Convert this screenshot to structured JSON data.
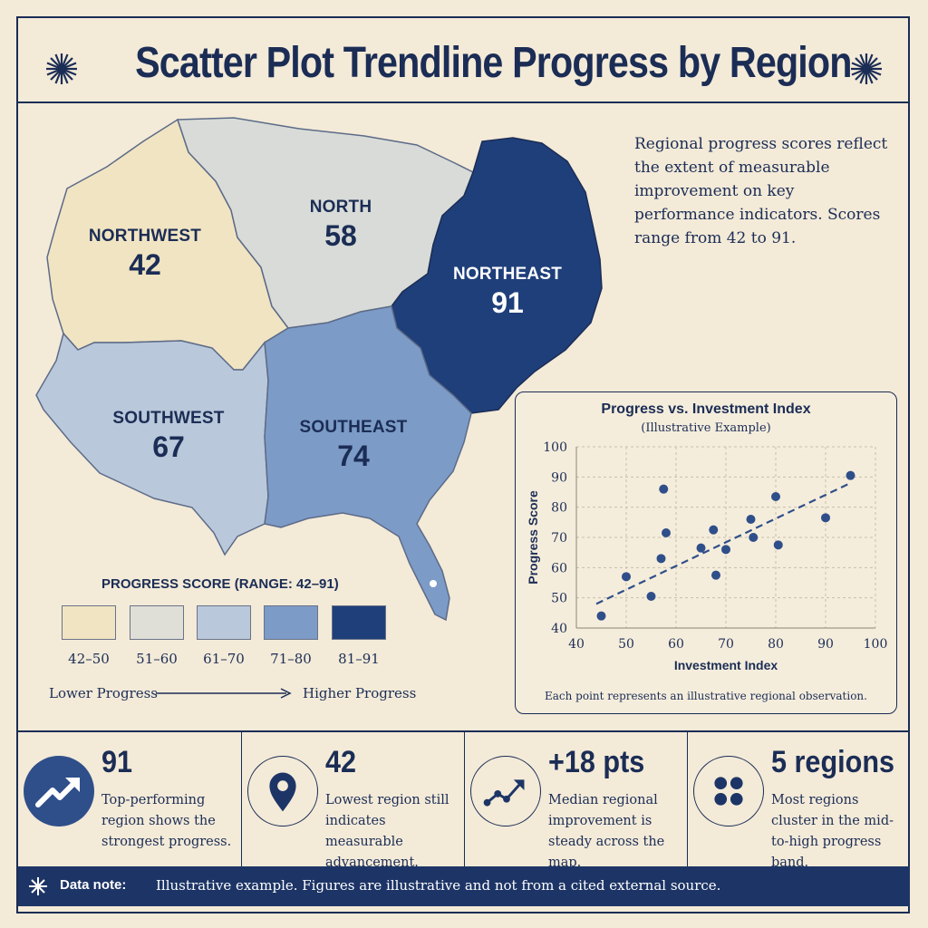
{
  "header": {
    "title": "Scatter Plot Trendline Progress by Region"
  },
  "intro_text": "Regional progress scores reflect the extent of measurable improvement on key performance indicators. Scores range from 42 to 91.",
  "regions": [
    {
      "name": "NORTHWEST",
      "score": "42"
    },
    {
      "name": "NORTH",
      "score": "58"
    },
    {
      "name": "NORTHEAST",
      "score": "91"
    },
    {
      "name": "SOUTHWEST",
      "score": "67"
    },
    {
      "name": "SOUTHEAST",
      "score": "74"
    }
  ],
  "region_colors": {
    "NORTHWEST": "#f1e4c2",
    "NORTH": "#d8dbd7",
    "NORTHEAST": "#1f3f7a",
    "SOUTHWEST": "#b9c8da",
    "SOUTHEAST": "#7c9bc7"
  },
  "legend": {
    "title": "PROGRESS SCORE (RANGE: 42–91)",
    "bins": [
      {
        "label": "42–50",
        "color": "#f1e4c2"
      },
      {
        "label": "51–60",
        "color": "#dfdfd8"
      },
      {
        "label": "61–70",
        "color": "#b9c8da"
      },
      {
        "label": "71–80",
        "color": "#7c9bc7"
      },
      {
        "label": "81–91",
        "color": "#1f3f7a"
      }
    ],
    "low_label": "Lower Progress",
    "high_label": "Higher Progress"
  },
  "chart_data": {
    "type": "scatter",
    "title": "Progress vs. Investment Index",
    "subtitle": "(Illustrative Example)",
    "xlabel": "Investment Index",
    "ylabel": "Progress Score",
    "xlim": [
      40,
      100
    ],
    "ylim": [
      40,
      100
    ],
    "xticks": [
      40,
      50,
      60,
      70,
      80,
      90,
      100
    ],
    "yticks": [
      40,
      50,
      60,
      70,
      80,
      90,
      100
    ],
    "grid": true,
    "points": [
      {
        "x": 45,
        "y": 44
      },
      {
        "x": 50,
        "y": 57
      },
      {
        "x": 55,
        "y": 50.5
      },
      {
        "x": 57,
        "y": 63
      },
      {
        "x": 57.5,
        "y": 86
      },
      {
        "x": 58,
        "y": 71.5
      },
      {
        "x": 65,
        "y": 66.5
      },
      {
        "x": 67.5,
        "y": 72.5
      },
      {
        "x": 68,
        "y": 57.5
      },
      {
        "x": 70,
        "y": 66
      },
      {
        "x": 75,
        "y": 76
      },
      {
        "x": 75.5,
        "y": 70
      },
      {
        "x": 80,
        "y": 83.5
      },
      {
        "x": 80.5,
        "y": 67.5
      },
      {
        "x": 90,
        "y": 76.5
      },
      {
        "x": 95,
        "y": 90.5
      }
    ],
    "trendline": {
      "x": [
        44,
        95
      ],
      "y": [
        48,
        88
      ],
      "style": "dashed"
    },
    "note": "Each point represents an illustrative regional observation.",
    "point_color": "#2f4f8a"
  },
  "stats": [
    {
      "value": "91",
      "desc": "Top-performing region shows the strongest progress.",
      "icon": "trending-up-icon"
    },
    {
      "value": "42",
      "desc": "Lowest region still indicates measurable advancement.",
      "icon": "location-pin-icon"
    },
    {
      "value": "+18 pts",
      "desc": "Median regional improvement is steady across the map.",
      "icon": "growth-chart-icon"
    },
    {
      "value": "5 regions",
      "desc": "Most regions cluster in the mid-to-high progress band.",
      "icon": "four-dots-icon"
    }
  ],
  "data_note": {
    "label": "Data note:",
    "text": "Illustrative example. Figures are illustrative and not from a cited external source."
  }
}
